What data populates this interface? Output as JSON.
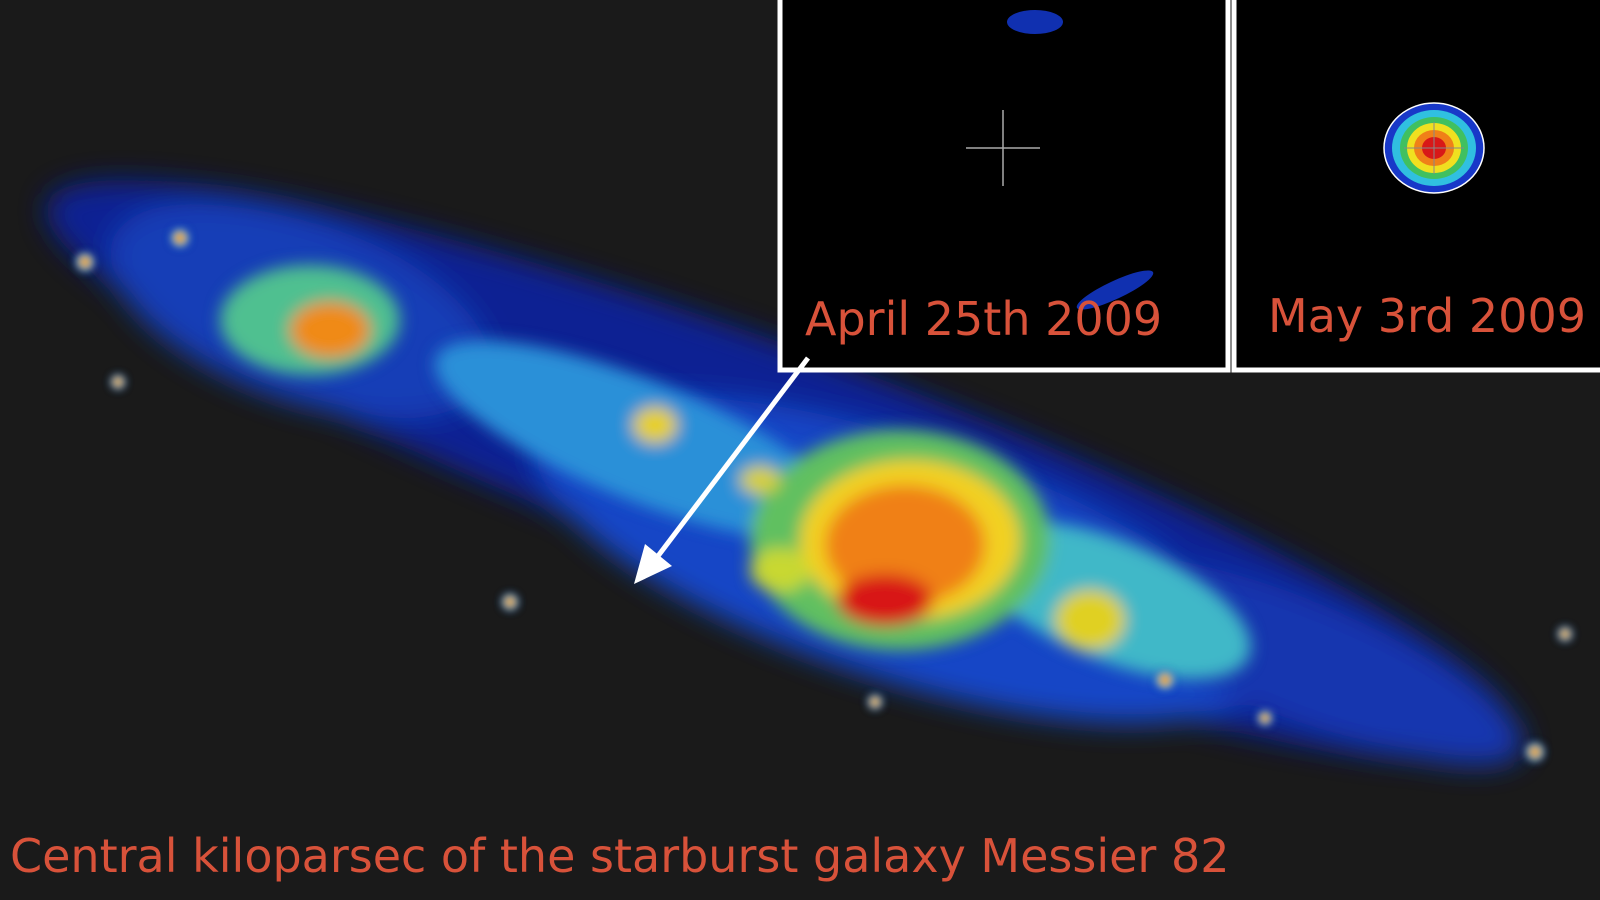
{
  "insets": [
    {
      "label": "April 25th 2009"
    },
    {
      "label": "May 3rd 2009"
    }
  ],
  "caption": "Central kiloparsec of the starburst galaxy Messier 82"
}
